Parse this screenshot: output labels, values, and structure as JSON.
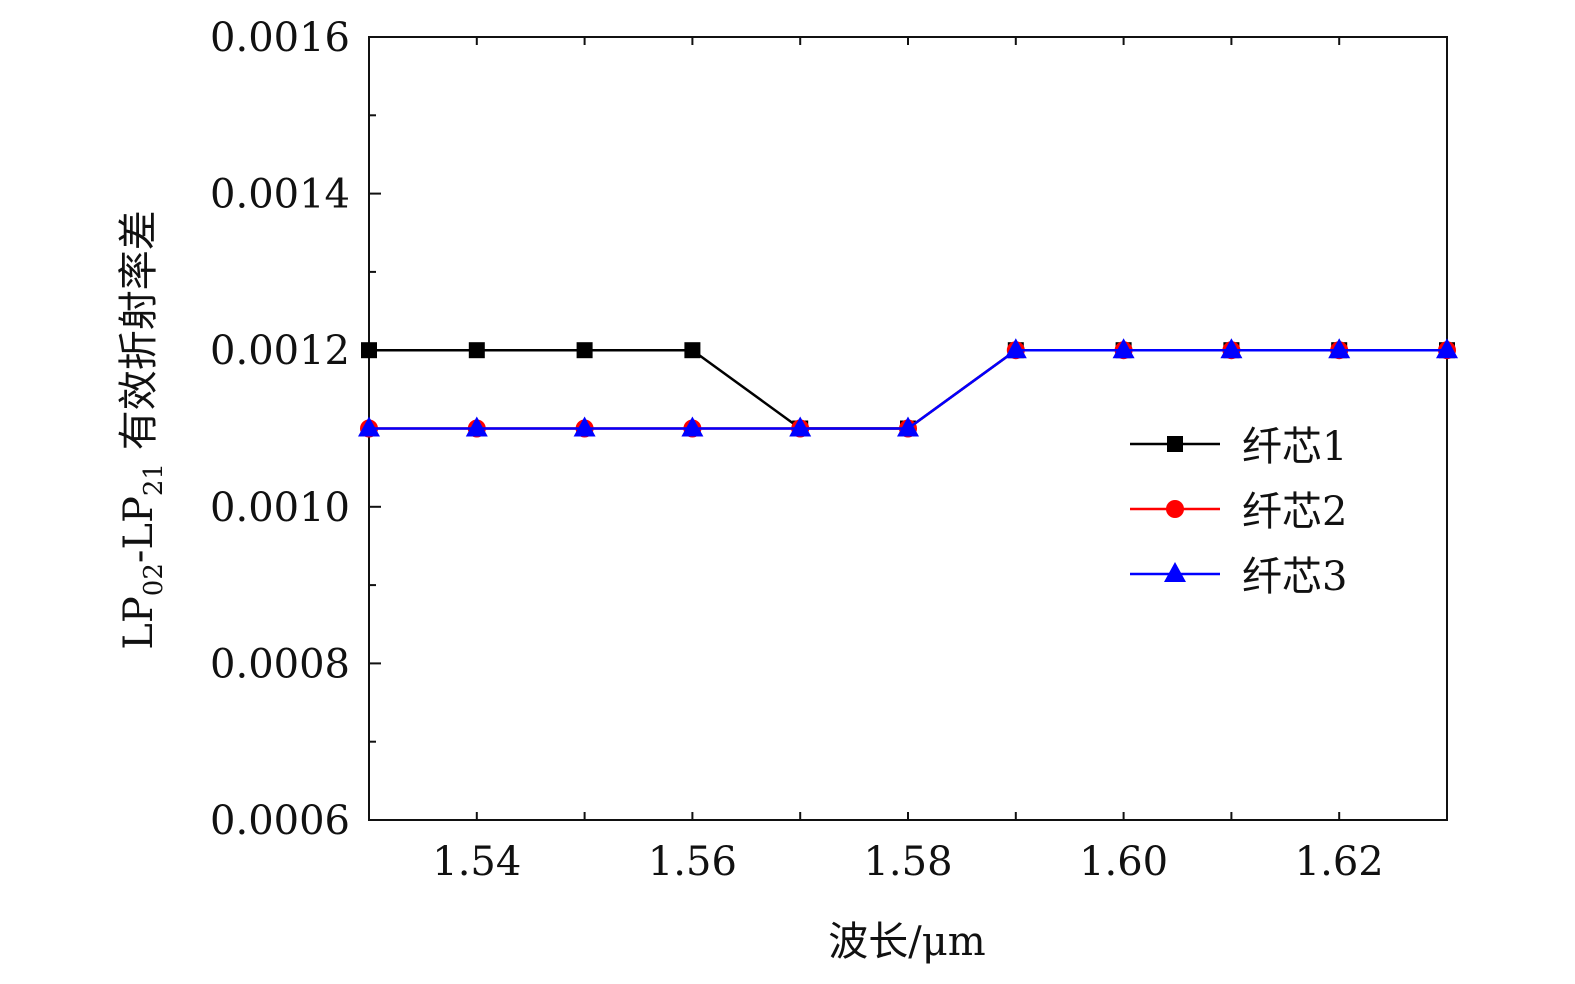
{
  "chart_data": {
    "type": "line",
    "title": "",
    "xlabel": "波长/μm",
    "ylabel": {
      "prefix": "LP",
      "sub1": "02",
      "mid": "-LP",
      "sub2": "21",
      "suffix": " 有效折射率差"
    },
    "xlim": [
      1.53,
      1.63
    ],
    "ylim": [
      0.0006,
      0.0016
    ],
    "xticks": [
      1.54,
      1.56,
      1.58,
      1.6,
      1.62
    ],
    "xtick_labels": [
      "1.54",
      "1.56",
      "1.58",
      "1.60",
      "1.62"
    ],
    "yticks": [
      0.0006,
      0.0008,
      0.001,
      0.0012,
      0.0014,
      0.0016
    ],
    "ytick_labels": [
      "0.0006",
      "0.0008",
      "0.0010",
      "0.0012",
      "0.0014",
      "0.0016"
    ],
    "grid": false,
    "legend_position": "right",
    "x": [
      1.53,
      1.54,
      1.55,
      1.56,
      1.57,
      1.58,
      1.59,
      1.6,
      1.61,
      1.62,
      1.63
    ],
    "series": [
      {
        "name": "纤芯1",
        "color": "#000000",
        "marker": "square",
        "values": [
          0.0012,
          0.0012,
          0.0012,
          0.0012,
          0.0011,
          0.0011,
          0.0012,
          0.0012,
          0.0012,
          0.0012,
          0.0012
        ]
      },
      {
        "name": "纤芯2",
        "color": "#ff0000",
        "marker": "circle",
        "values": [
          0.0011,
          0.0011,
          0.0011,
          0.0011,
          0.0011,
          0.0011,
          0.0012,
          0.0012,
          0.0012,
          0.0012,
          0.0012
        ]
      },
      {
        "name": "纤芯3",
        "color": "#0000ff",
        "marker": "triangle",
        "values": [
          0.0011,
          0.0011,
          0.0011,
          0.0011,
          0.0011,
          0.0011,
          0.0012,
          0.0012,
          0.0012,
          0.0012,
          0.0012
        ]
      }
    ]
  }
}
